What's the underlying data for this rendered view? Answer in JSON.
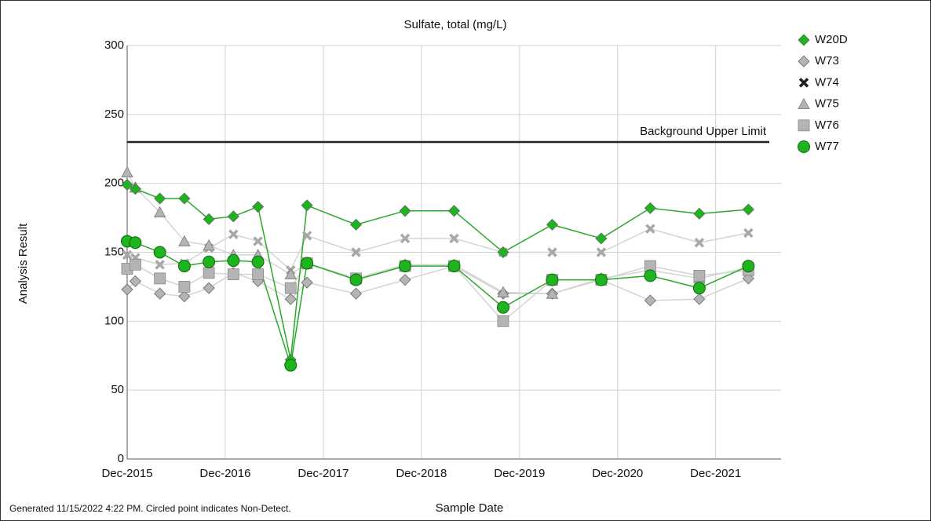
{
  "chart_data": {
    "type": "line",
    "title": "Sulfate, total (mg/L)",
    "x_label": "Sample Date",
    "y_label": "Analysis Result",
    "footnote": "Generated 11/15/2022 4:22 PM. Circled point indicates Non-Detect.",
    "x": [
      "2015-12",
      "2016-01",
      "2016-04",
      "2016-07",
      "2016-10",
      "2017-01",
      "2017-04",
      "2017-08",
      "2017-10",
      "2018-04",
      "2018-10",
      "2019-04",
      "2019-10",
      "2020-04",
      "2020-10",
      "2021-04",
      "2021-10",
      "2022-04"
    ],
    "xlim": [
      "2015-12",
      "2022-08"
    ],
    "xticks": [
      {
        "value": "2015-12",
        "label": "Dec-2015"
      },
      {
        "value": "2016-12",
        "label": "Dec-2016"
      },
      {
        "value": "2017-12",
        "label": "Dec-2017"
      },
      {
        "value": "2018-12",
        "label": "Dec-2018"
      },
      {
        "value": "2019-12",
        "label": "Dec-2019"
      },
      {
        "value": "2020-12",
        "label": "Dec-2020"
      },
      {
        "value": "2021-12",
        "label": "Dec-2021"
      }
    ],
    "ylim": [
      0,
      300
    ],
    "yticks": [
      0,
      50,
      100,
      150,
      200,
      250,
      300
    ],
    "grid": true,
    "reference_line": {
      "value": 230,
      "label": "Background Upper Limit",
      "color": "#222222"
    },
    "series": [
      {
        "name": "W20D",
        "color": "#1eb41e",
        "line_color": "#2aa82a",
        "marker": "diamond",
        "values": [
          199,
          196,
          189,
          189,
          174,
          176,
          183,
          72,
          184,
          170,
          180,
          180,
          150,
          170,
          160,
          182,
          178,
          181
        ]
      },
      {
        "name": "W73",
        "color": "#b4b4b4",
        "line_color": "#d4d4d4",
        "marker": "diamond",
        "values": [
          123,
          129,
          120,
          118,
          124,
          135,
          129,
          116,
          128,
          120,
          130,
          140,
          120,
          120,
          130,
          115,
          116,
          131
        ]
      },
      {
        "name": "W74",
        "color": "#a8a8a8",
        "line_color": "#d4d4d4",
        "marker": "x",
        "values": [
          148,
          146,
          141,
          142,
          153,
          163,
          158,
          137,
          162,
          150,
          160,
          160,
          150,
          150,
          150,
          167,
          157,
          164
        ]
      },
      {
        "name": "W75",
        "color": "#b4b4b4",
        "line_color": "#d4d4d4",
        "marker": "triangle",
        "values": [
          208,
          197,
          179,
          158,
          155,
          148,
          148,
          134,
          142,
          131,
          141,
          141,
          121,
          120,
          131,
          137,
          131,
          139
        ]
      },
      {
        "name": "W76",
        "color": "#b4b4b4",
        "line_color": "#d4d4d4",
        "marker": "square",
        "values": [
          138,
          141,
          131,
          125,
          135,
          134,
          134,
          124,
          142,
          131,
          140,
          140,
          100,
          130,
          130,
          140,
          133,
          137
        ]
      },
      {
        "name": "W77",
        "color": "#1eb41e",
        "line_color": "#2aa82a",
        "marker": "circle",
        "values": [
          158,
          157,
          150,
          140,
          143,
          144,
          143,
          68,
          142,
          130,
          140,
          140,
          110,
          130,
          130,
          133,
          124,
          140
        ]
      }
    ]
  }
}
